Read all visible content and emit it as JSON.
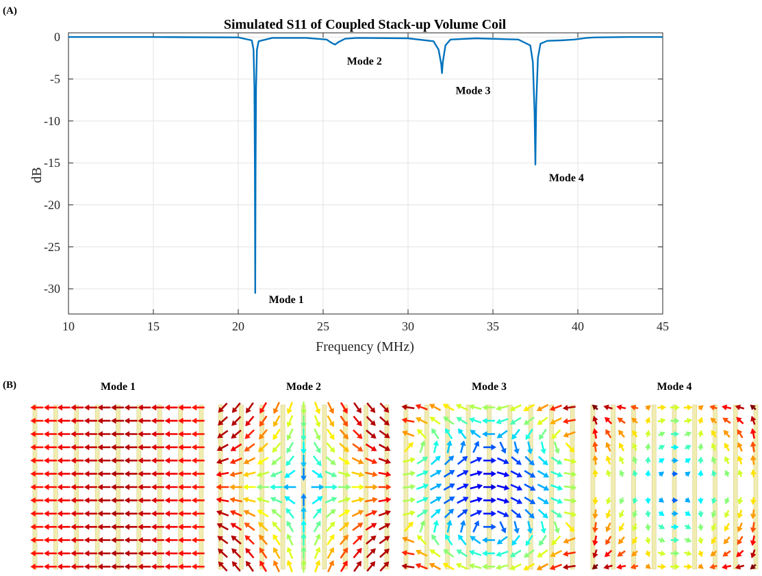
{
  "panels": {
    "a_label": "(A)",
    "b_label": "(B)"
  },
  "chart_data": {
    "type": "line",
    "title": "Simulated S11 of Coupled Stack-up Volume Coil",
    "xlabel": "Frequency (MHz)",
    "ylabel": "dB",
    "xlim": [
      10,
      45
    ],
    "ylim": [
      -33,
      0.5
    ],
    "xticks": [
      "10",
      "15",
      "20",
      "25",
      "30",
      "35",
      "40",
      "45"
    ],
    "yticks": [
      "0",
      "-5",
      "-10",
      "-15",
      "-20",
      "-25",
      "-30"
    ],
    "grid": true,
    "line_color": "#0072bd",
    "series": [
      {
        "x": [
          10,
          15,
          20,
          20.8,
          20.9,
          20.95,
          20.98,
          21.0,
          21.02,
          21.05,
          21.1,
          21.2,
          22,
          24,
          25.2,
          25.5,
          25.7,
          25.9,
          26.3,
          27,
          30,
          31.5,
          31.8,
          31.95,
          32.0,
          32.05,
          32.2,
          32.5,
          34,
          36.5,
          37.2,
          37.35,
          37.45,
          37.5,
          37.55,
          37.65,
          37.8,
          38.2,
          39,
          39.8,
          40.5,
          41,
          43,
          45
        ],
        "y": [
          0,
          0,
          -0.05,
          -0.4,
          -1.5,
          -6,
          -16,
          -30.5,
          -16,
          -6,
          -1.5,
          -0.5,
          -0.1,
          -0.1,
          -0.3,
          -0.7,
          -0.9,
          -0.6,
          -0.2,
          -0.1,
          -0.15,
          -0.5,
          -1.5,
          -3.2,
          -4.3,
          -3,
          -1,
          -0.3,
          -0.15,
          -0.3,
          -1,
          -3,
          -9,
          -15.2,
          -8,
          -2.5,
          -0.8,
          -0.45,
          -0.4,
          -0.3,
          -0.1,
          -0.05,
          0,
          0
        ]
      }
    ],
    "annotations": [
      {
        "text": "Mode 1",
        "x": 21.8,
        "y": -31.2
      },
      {
        "text": "Mode 2",
        "x": 26.4,
        "y": -2.8
      },
      {
        "text": "Mode 3",
        "x": 32.8,
        "y": -6.3
      },
      {
        "text": "Mode 4",
        "x": 38.3,
        "y": -16.7
      }
    ]
  },
  "field_maps": [
    {
      "title": "Mode 1"
    },
    {
      "title": "Mode 2"
    },
    {
      "title": "Mode 3"
    },
    {
      "title": "Mode 4"
    }
  ]
}
